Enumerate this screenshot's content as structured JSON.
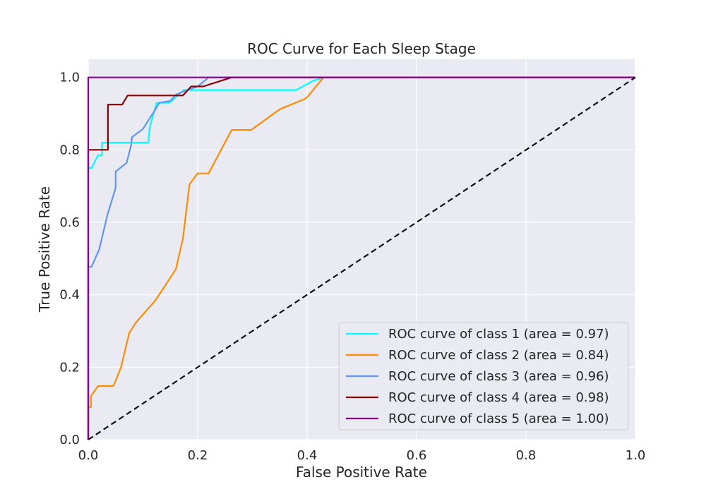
{
  "chart_data": {
    "type": "line",
    "title": "ROC Curve for Each Sleep Stage",
    "xlabel": "False Positive Rate",
    "ylabel": "True Positive Rate",
    "xlim": [
      0.0,
      1.0
    ],
    "ylim": [
      0.0,
      1.05
    ],
    "xticks": [
      "0.0",
      "0.2",
      "0.4",
      "0.6",
      "0.8",
      "1.0"
    ],
    "yticks": [
      "0.0",
      "0.2",
      "0.4",
      "0.6",
      "0.8",
      "1.0"
    ],
    "grid": true,
    "legend_position": "lower-right",
    "series": [
      {
        "name": "ROC curve of class 1 (area = 0.97)",
        "color": "#00ffff",
        "x": [
          0.0,
          0.0,
          0.006,
          0.018,
          0.025,
          0.025,
          0.04,
          0.06,
          0.11,
          0.112,
          0.125,
          0.13,
          0.148,
          0.16,
          0.175,
          0.38,
          0.41,
          0.43,
          1.0
        ],
        "y": [
          0.0,
          0.75,
          0.75,
          0.785,
          0.785,
          0.82,
          0.82,
          0.82,
          0.82,
          0.86,
          0.93,
          0.93,
          0.93,
          0.945,
          0.965,
          0.965,
          0.99,
          1.0,
          1.0
        ]
      },
      {
        "name": "ROC curve of class 2 (area = 0.84)",
        "color": "#ff8c00",
        "x": [
          0.0,
          0.0,
          0.005,
          0.005,
          0.018,
          0.046,
          0.06,
          0.075,
          0.088,
          0.123,
          0.16,
          0.173,
          0.185,
          0.2,
          0.22,
          0.262,
          0.298,
          0.35,
          0.395,
          0.4,
          0.43,
          1.0
        ],
        "y": [
          0.0,
          0.09,
          0.09,
          0.12,
          0.148,
          0.148,
          0.2,
          0.295,
          0.325,
          0.385,
          0.47,
          0.555,
          0.705,
          0.735,
          0.735,
          0.855,
          0.855,
          0.912,
          0.94,
          0.945,
          1.0,
          1.0
        ]
      },
      {
        "name": "ROC curve of class 3 (area = 0.96)",
        "color": "#6495ed",
        "x": [
          0.0,
          0.0,
          0.006,
          0.02,
          0.035,
          0.05,
          0.05,
          0.07,
          0.078,
          0.08,
          0.1,
          0.12,
          0.13,
          0.15,
          0.16,
          0.175,
          0.2,
          0.22,
          0.24,
          1.0
        ],
        "y": [
          0.0,
          0.477,
          0.477,
          0.525,
          0.62,
          0.695,
          0.74,
          0.764,
          0.81,
          0.835,
          0.858,
          0.905,
          0.93,
          0.935,
          0.952,
          0.962,
          0.975,
          1.0,
          1.0,
          1.0
        ]
      },
      {
        "name": "ROC curve of class 4 (area = 0.98)",
        "color": "#8b0000",
        "x": [
          0.0,
          0.0,
          0.036,
          0.036,
          0.062,
          0.072,
          0.072,
          0.173,
          0.188,
          0.21,
          0.262,
          1.0
        ],
        "y": [
          0.0,
          0.8,
          0.8,
          0.925,
          0.925,
          0.95,
          0.95,
          0.95,
          0.975,
          0.975,
          1.0,
          1.0
        ]
      },
      {
        "name": "ROC curve of class 5 (area = 1.00)",
        "color": "#8b008b",
        "x": [
          0.0,
          0.0,
          1.0
        ],
        "y": [
          0.0,
          1.0,
          1.0
        ]
      }
    ],
    "reference_line": {
      "x": [
        0.0,
        1.0
      ],
      "y": [
        0.0,
        1.0
      ],
      "color": "#111111",
      "style": "dashed"
    }
  }
}
